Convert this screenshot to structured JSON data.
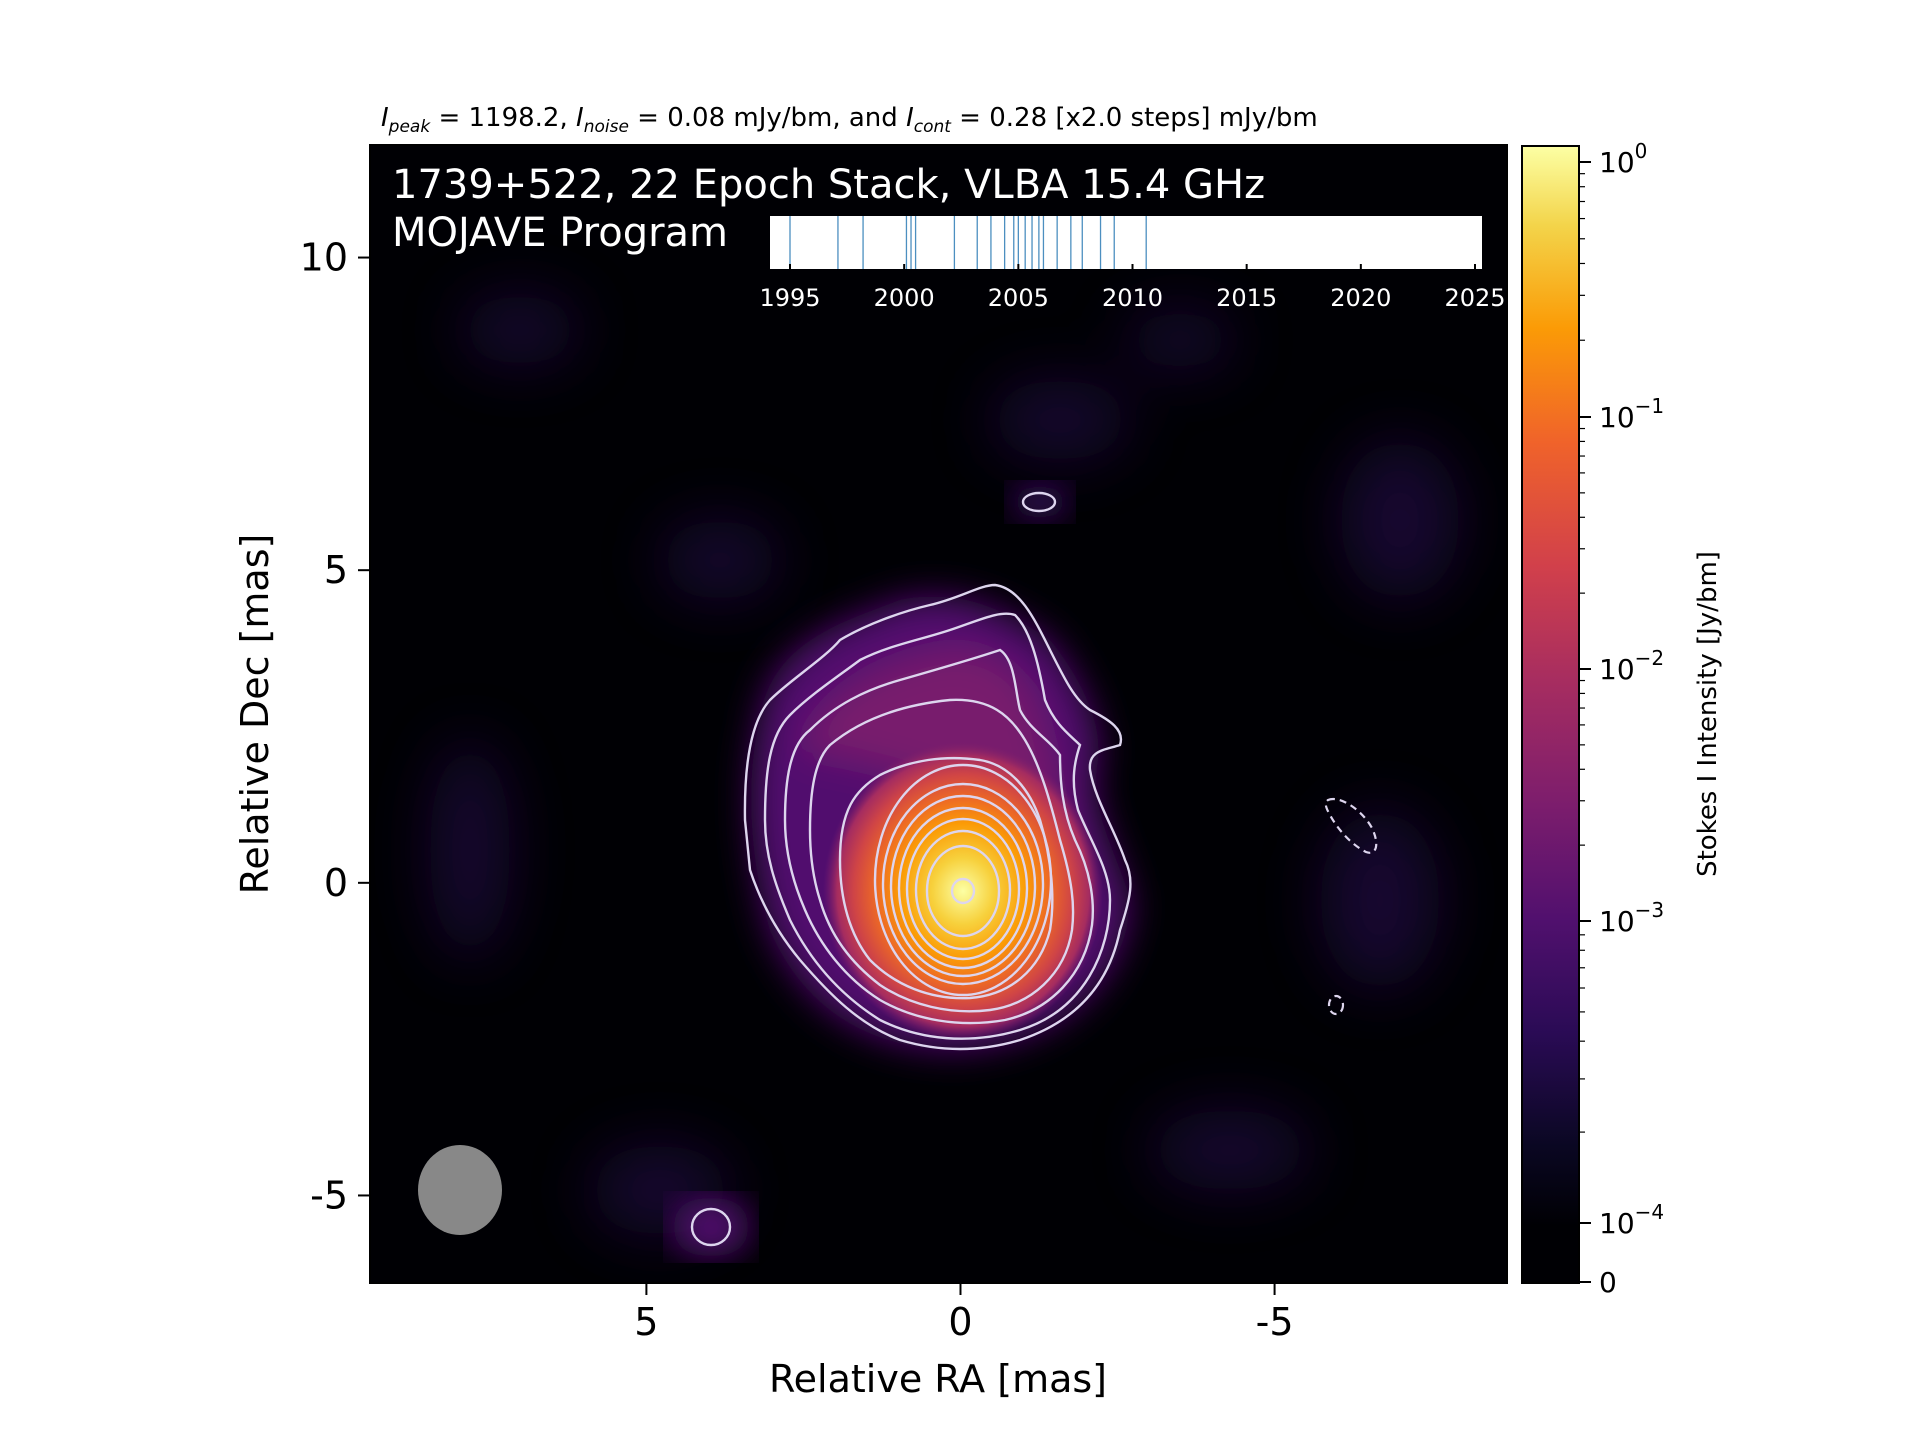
{
  "chart_data": {
    "type": "heatmap",
    "header": {
      "peak_sym": "I",
      "peak_sub": "peak",
      "peak_val": " = 1198.2, ",
      "noise_sym": "I",
      "noise_sub": "noise",
      "noise_val": " = 0.08 mJy/bm, and ",
      "cont_sym": "I",
      "cont_sub": "cont",
      "cont_val": " = 0.28 [x2.0 steps] mJy/bm"
    },
    "title_line1": "1739+522, 22 Epoch Stack, VLBA 15.4 GHz",
    "title_line2": "MOJAVE Program",
    "xlabel": "Relative RA [mas]",
    "ylabel": "Relative Dec [mas]",
    "xlim": [
      9.4,
      -8.7
    ],
    "ylim": [
      -6.4,
      11.8
    ],
    "xticks": [
      {
        "v": 5,
        "label": "5"
      },
      {
        "v": 0,
        "label": "0"
      },
      {
        "v": -5,
        "label": "-5"
      }
    ],
    "yticks": [
      {
        "v": 10,
        "label": "10"
      },
      {
        "v": 5,
        "label": "5"
      },
      {
        "v": 0,
        "label": "0"
      },
      {
        "v": -5,
        "label": "-5"
      }
    ],
    "colorbar": {
      "label": "Stokes I Intensity [Jy/bm]",
      "scale": "log",
      "ticks": [
        {
          "base": "10",
          "exp": "0"
        },
        {
          "base": "10",
          "exp": "−1"
        },
        {
          "base": "10",
          "exp": "−2"
        },
        {
          "base": "10",
          "exp": "−3"
        },
        {
          "base": "10",
          "exp": "−4"
        }
      ],
      "zero_label": "0",
      "colormap": "inferno",
      "colors": [
        "#000004",
        "#1b0c41",
        "#4a0c6b",
        "#781c6d",
        "#a52c60",
        "#cf4446",
        "#ed6925",
        "#fb9b06",
        "#f7d13d",
        "#fcffa4"
      ]
    },
    "epochs": {
      "axis_ticks": [
        1995,
        2000,
        2005,
        2010,
        2015,
        2020,
        2025
      ],
      "dates": [
        1995.0,
        1997.1,
        1998.2,
        2000.1,
        2000.3,
        2000.5,
        2002.2,
        2003.2,
        2003.8,
        2004.4,
        2004.8,
        2005.0,
        2005.3,
        2005.6,
        2005.9,
        2006.1,
        2006.7,
        2007.3,
        2007.8,
        2008.6,
        2009.2,
        2010.6
      ],
      "line_color": "#4c8fc0"
    },
    "beam": {
      "ra": 8.0,
      "dec": -4.8,
      "major_mas": 1.45,
      "minor_mas": 1.3,
      "color": "#888888"
    },
    "peak": {
      "ra": 0.0,
      "dec": 0.0
    },
    "negative_contours": [
      {
        "ra": -6.3,
        "dec": 0.8
      },
      {
        "ra": -6.0,
        "dec": -1.9
      }
    ],
    "contour_color": "#ddd5ee"
  }
}
